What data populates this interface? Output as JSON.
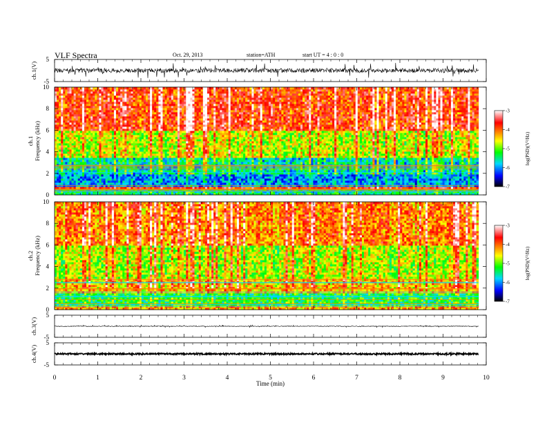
{
  "header": {
    "title": "VLF  Spectra",
    "date": "Oct. 29, 2013",
    "station": "station=ATH",
    "start": "start  UT  =   4  : 0   : 0"
  },
  "colors": {
    "colormap": [
      "#000000",
      "#0000ff",
      "#00d8ff",
      "#00ff00",
      "#ffff00",
      "#ff8000",
      "#ff0000",
      "#ffffff"
    ],
    "trace": "#000000",
    "axis": "#000000"
  },
  "chart_data": [
    {
      "type": "line",
      "panel": "ch1-waveform",
      "ylabel": "ch.1(V)",
      "yticks": [
        "5",
        "-5"
      ],
      "ylim": [
        -5,
        5
      ],
      "xlim": [
        0,
        10
      ],
      "data_end_min": 9.82,
      "baseline": 0,
      "noise_amplitude": 1.0,
      "spike_amplitude": 3.5
    },
    {
      "type": "heatmap",
      "panel": "ch1-spectrogram",
      "ylabel": "ch.1\nFrequency  (kHz)",
      "yticks": [
        "0",
        "2",
        "4",
        "6",
        "8",
        "10"
      ],
      "ylim": [
        0,
        10
      ],
      "xlim": [
        0,
        10
      ],
      "colorbar": {
        "label": "log(PSD)(V²/Hz)",
        "ticks": [
          "-3",
          "-4",
          "-5",
          "-6",
          "-7"
        ],
        "range": [
          -7,
          -3
        ]
      },
      "bands": [
        {
          "f_min": 0.0,
          "f_max": 0.5,
          "logpsd": -5.5
        },
        {
          "f_min": 0.5,
          "f_max": 0.7,
          "logpsd": -3.8
        },
        {
          "f_min": 0.7,
          "f_max": 2.0,
          "logpsd": -6.0
        },
        {
          "f_min": 2.0,
          "f_max": 3.5,
          "logpsd": -5.6
        },
        {
          "f_min": 3.5,
          "f_max": 6.0,
          "logpsd": -4.7
        },
        {
          "f_min": 6.0,
          "f_max": 10.0,
          "logpsd": -3.8
        }
      ]
    },
    {
      "type": "heatmap",
      "panel": "ch2-spectrogram",
      "ylabel": "ch.2\nFrequency  (kHz)",
      "yticks": [
        "0",
        "2",
        "4",
        "6",
        "8",
        "10"
      ],
      "ylim": [
        0,
        10
      ],
      "xlim": [
        0,
        10
      ],
      "colorbar": {
        "label": "log(PSD)(V²/Hz)",
        "ticks": [
          "-3",
          "-4",
          "-5",
          "-6",
          "-7"
        ],
        "range": [
          -7,
          -3
        ]
      },
      "bands": [
        {
          "f_min": 0.0,
          "f_max": 0.3,
          "logpsd": -4.3
        },
        {
          "f_min": 0.3,
          "f_max": 1.6,
          "logpsd": -5.3
        },
        {
          "f_min": 1.6,
          "f_max": 2.8,
          "logpsd": -4.4
        },
        {
          "f_min": 2.8,
          "f_max": 6.0,
          "logpsd": -4.8
        },
        {
          "f_min": 6.0,
          "f_max": 10.0,
          "logpsd": -4.1
        }
      ]
    },
    {
      "type": "line",
      "panel": "ch3-waveform",
      "ylabel": "ch.3(V)",
      "yticks": [
        "5",
        "-5"
      ],
      "ylim": [
        -5,
        5
      ],
      "xlim": [
        0,
        10
      ],
      "data_end_min": 9.82,
      "baseline": 0,
      "noise_amplitude": 0.15,
      "spike_amplitude": 0.5
    },
    {
      "type": "line",
      "panel": "ch4-waveform",
      "ylabel": "ch.4(V)",
      "yticks": [
        "5",
        "-5"
      ],
      "ylim": [
        -5,
        5
      ],
      "xlim": [
        0,
        10
      ],
      "data_end_min": 9.82,
      "baseline": 0,
      "noise_amplitude": 0.35,
      "spike_amplitude": 0.35
    }
  ],
  "x_axis": {
    "label": "Time  (min)",
    "ticks": [
      "0",
      "1",
      "2",
      "3",
      "4",
      "5",
      "6",
      "7",
      "8",
      "9",
      "10"
    ],
    "range": [
      0,
      10
    ]
  }
}
